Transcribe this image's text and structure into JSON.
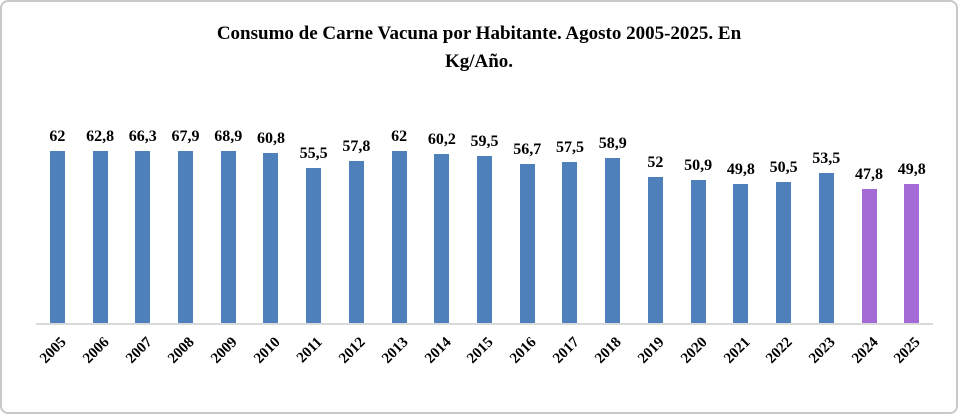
{
  "title": {
    "line1": "Consumo de Carne Vacuna por Habitante. Agosto 2005-2025. En",
    "line2": "Kg/Año.",
    "full": "Consumo de Carne Vacuna por Habitante. Agosto 2005-2025. En Kg/Año."
  },
  "chart_data": {
    "type": "bar",
    "title": "Consumo de Carne Vacuna por Habitante. Agosto 2005-2025. En Kg/Año.",
    "xlabel": "",
    "ylabel": "",
    "ylim": [
      0,
      70
    ],
    "grid": false,
    "legend": false,
    "categories": [
      "2005",
      "2006",
      "2007",
      "2008",
      "2009",
      "2010",
      "2011",
      "2012",
      "2013",
      "2014",
      "2015",
      "2016",
      "2017",
      "2018",
      "2019",
      "2020",
      "2021",
      "2022",
      "2023",
      "2024",
      "2025"
    ],
    "values": [
      62,
      62.8,
      66.3,
      67.9,
      68.9,
      60.8,
      55.5,
      57.8,
      62,
      60.2,
      59.5,
      56.7,
      57.5,
      58.9,
      52,
      50.9,
      49.8,
      50.5,
      53.5,
      47.8,
      49.8
    ],
    "labels": [
      "62",
      "62,8",
      "66,3",
      "67,9",
      "68,9",
      "60,8",
      "55,5",
      "57,8",
      "62",
      "60,2",
      "59,5",
      "56,7",
      "57,5",
      "58,9",
      "52",
      "50,9",
      "49,8",
      "50,5",
      "53,5",
      "47,8",
      "49,8"
    ],
    "bar_color_default": "#4E80BC",
    "bar_color_highlight": "#A46AD6",
    "highlight_categories": [
      "2024",
      "2025"
    ],
    "axis_line_color": "#d9d9d9"
  }
}
